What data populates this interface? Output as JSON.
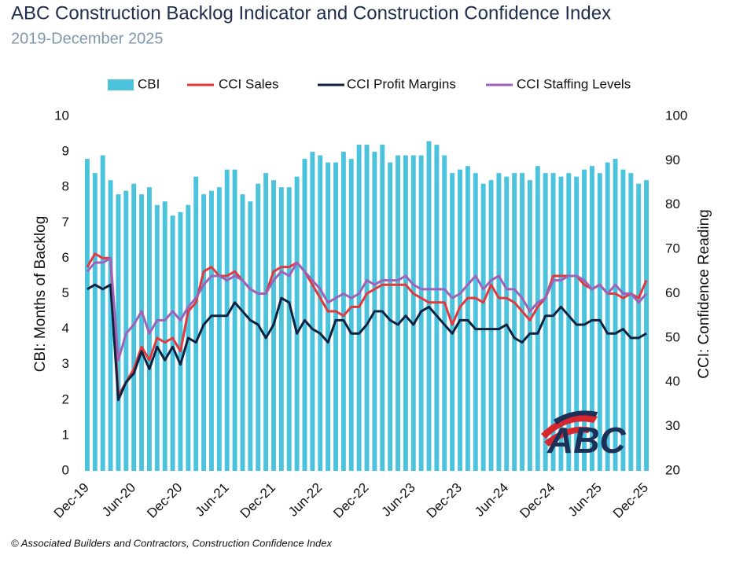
{
  "chart_data": {
    "type": "bar_line_dual_axis",
    "title": "ABC Construction Backlog Indicator and Construction Confidence Index",
    "subtitle": "2019-December 2025",
    "y_label": "CBI: Months of Backlog",
    "y2_label": "CCI: Confidence Reading",
    "footer": "© Associated Builders and Contractors, Construction Confidence Index",
    "logo": "ABC",
    "categories": [
      "Dec-19",
      null,
      null,
      null,
      null,
      null,
      "Jun-20",
      null,
      null,
      null,
      null,
      null,
      "Dec-20",
      null,
      null,
      null,
      null,
      null,
      "Jun-21",
      null,
      null,
      null,
      null,
      null,
      "Dec-21",
      null,
      null,
      null,
      null,
      null,
      "Jun-22",
      null,
      null,
      null,
      null,
      null,
      "Dec-22",
      null,
      null,
      null,
      null,
      null,
      "Jun-23",
      null,
      null,
      null,
      null,
      null,
      "Dec-23",
      null,
      null,
      null,
      null,
      null,
      "Jun-24",
      null,
      null,
      null,
      null,
      null,
      "Dec-24",
      null,
      null,
      null,
      null,
      null,
      "Jun-25",
      null,
      null,
      null,
      null,
      null,
      "Dec-25"
    ],
    "ylim": [
      0,
      10
    ],
    "yticks": [
      0,
      1,
      2,
      3,
      4,
      5,
      6,
      7,
      8,
      9,
      10
    ],
    "y2lim": [
      20,
      100
    ],
    "y2ticks": [
      20,
      30,
      40,
      50,
      60,
      70,
      80,
      90,
      100
    ],
    "legend": "top",
    "series": [
      {
        "name": "CBI",
        "type": "bar",
        "color": "#4cc3dd",
        "values": [
          8.8,
          8.4,
          8.9,
          8.2,
          7.8,
          7.9,
          8.1,
          7.8,
          8.0,
          7.5,
          7.6,
          7.2,
          7.3,
          7.5,
          8.3,
          7.8,
          7.9,
          8.0,
          8.5,
          8.5,
          7.8,
          7.6,
          8.1,
          8.4,
          8.2,
          8.0,
          8.0,
          8.3,
          8.8,
          9.0,
          8.9,
          8.7,
          8.7,
          9.0,
          8.8,
          9.2,
          9.2,
          9.0,
          9.2,
          8.7,
          8.9,
          8.9,
          8.9,
          8.9,
          9.3,
          9.2,
          8.9,
          8.4,
          8.5,
          8.6,
          8.4,
          8.1,
          8.2,
          8.4,
          8.3,
          8.4,
          8.4,
          8.2,
          8.6,
          8.4,
          8.4,
          8.3,
          8.4,
          8.3,
          8.5,
          8.6,
          8.4,
          8.7,
          8.8,
          8.5,
          8.4,
          8.1,
          8.2
        ]
      },
      {
        "name": "CCI Sales",
        "type": "line",
        "axis": "y2",
        "color": "#e0393e",
        "values": [
          66,
          69,
          68,
          68,
          37,
          40,
          43,
          48,
          45,
          50,
          49,
          50,
          47,
          56,
          58,
          65,
          66,
          64,
          64,
          65,
          63,
          61,
          60,
          60,
          65,
          66,
          66,
          67,
          65,
          62,
          59,
          56,
          56,
          55,
          57,
          57,
          60,
          61,
          62,
          62,
          62,
          62,
          60,
          59,
          58,
          58,
          58,
          53,
          57,
          59,
          59,
          58,
          62,
          59,
          59,
          58,
          56,
          54,
          57,
          59,
          64,
          64,
          64,
          64,
          62,
          61,
          62,
          60,
          60,
          59,
          60,
          59,
          63
        ]
      },
      {
        "name": "CCI Profit Margins",
        "type": "line",
        "axis": "y2",
        "color": "#0e2240",
        "values": [
          61,
          62,
          61,
          62,
          36,
          40,
          42,
          47,
          43,
          48,
          45,
          48,
          44,
          50,
          49,
          53,
          55,
          55,
          55,
          58,
          56,
          54,
          53,
          50,
          53,
          59,
          58,
          51,
          54,
          52,
          51,
          49,
          54,
          54,
          51,
          51,
          53,
          56,
          56,
          54,
          53,
          55,
          53,
          56,
          57,
          55,
          53,
          51,
          54,
          54,
          52,
          52,
          52,
          52,
          53,
          50,
          49,
          51,
          51,
          55,
          55,
          57,
          55,
          53,
          53,
          54,
          54,
          51,
          51,
          52,
          50,
          50,
          51
        ]
      },
      {
        "name": "CCI Staffing Levels",
        "type": "line",
        "axis": "y2",
        "color": "#9e62b8",
        "values": [
          65,
          67,
          67,
          68,
          45,
          51,
          53,
          56,
          51,
          54,
          54,
          56,
          54,
          57,
          59,
          62,
          64,
          64,
          63,
          64,
          63,
          61,
          60,
          60,
          63,
          65,
          64,
          67,
          65,
          63,
          61,
          58,
          59,
          60,
          59,
          60,
          63,
          62,
          63,
          63,
          63,
          64,
          62,
          61,
          61,
          61,
          61,
          59,
          60,
          62,
          64,
          61,
          63,
          64,
          61,
          61,
          59,
          56,
          58,
          59,
          63,
          63,
          64,
          64,
          63,
          61,
          62,
          60,
          62,
          60,
          60,
          58,
          60
        ]
      }
    ]
  }
}
